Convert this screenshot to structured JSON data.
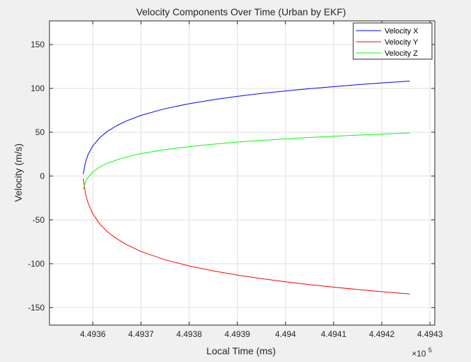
{
  "chart_data": {
    "type": "line",
    "title": "Velocity Components Over Time (Urban by EKF)",
    "xlabel": "Local Time (ms)",
    "ylabel": "Velocity (m/s)",
    "x_exponent_base": "×10",
    "x_exponent_power": "5",
    "xlim": [
      4.49351,
      4.49431
    ],
    "ylim": [
      -170,
      177
    ],
    "xticks": [
      4.4936,
      4.4937,
      4.4938,
      4.4939,
      4.494,
      4.4941,
      4.4942,
      4.4943
    ],
    "xtick_labels": [
      "4.4936",
      "4.4937",
      "4.4938",
      "4.4939",
      "4.494",
      "4.4941",
      "4.4942",
      "4.4943"
    ],
    "yticks": [
      -150,
      -100,
      -50,
      0,
      50,
      100,
      150
    ],
    "ytick_labels": [
      "-150",
      "-100",
      "-50",
      "0",
      "50",
      "100",
      "150"
    ],
    "grid": true,
    "legend": "top-right",
    "series": [
      {
        "name": "Velocity X",
        "color": "#0000ff",
        "x": [
          4.49358,
          4.493585,
          4.49359,
          4.4936,
          4.493615,
          4.49363,
          4.49365,
          4.49367,
          4.4937,
          4.49375,
          4.4938,
          4.49385,
          4.4939,
          4.49395,
          4.494,
          4.49405,
          4.4941,
          4.49415,
          4.4942,
          4.494258
        ],
        "values": [
          2.0,
          16.3,
          24.4,
          34.5,
          44.1,
          50.9,
          57.6,
          62.9,
          69.2,
          76.9,
          82.5,
          87.1,
          90.9,
          94.2,
          97.1,
          99.7,
          102.0,
          104.2,
          106.2,
          108.3
        ]
      },
      {
        "name": "Velocity Y",
        "color": "#ff0000",
        "x": [
          4.49358,
          4.493585,
          4.49359,
          4.4936,
          4.493615,
          4.49363,
          4.49365,
          4.49367,
          4.4937,
          4.49375,
          4.4938,
          4.49385,
          4.4939,
          4.49395,
          4.494,
          4.49405,
          4.4941,
          4.49415,
          4.4942,
          4.494258
        ],
        "values": [
          -3.0,
          -20.6,
          -30.6,
          -43.1,
          -55.0,
          -63.4,
          -71.6,
          -78.2,
          -86.0,
          -95.5,
          -102.5,
          -108.2,
          -112.9,
          -117.0,
          -120.6,
          -123.8,
          -126.7,
          -129.4,
          -131.9,
          -134.5
        ]
      },
      {
        "name": "Velocity Z",
        "color": "#00ff00",
        "x": [
          4.49358,
          4.493585,
          4.49359,
          4.4936,
          4.493615,
          4.49363,
          4.49365,
          4.49367,
          4.4937,
          4.49375,
          4.4938,
          4.49385,
          4.4939,
          4.49395,
          4.494,
          4.49405,
          4.4941,
          4.49415,
          4.4942,
          4.494258
        ],
        "values": [
          -15.0,
          -6.4,
          -1.5,
          4.6,
          10.4,
          14.5,
          18.5,
          21.8,
          25.6,
          30.2,
          33.6,
          36.4,
          38.7,
          40.7,
          42.4,
          44.0,
          45.4,
          46.7,
          47.9,
          49.2
        ]
      }
    ]
  }
}
